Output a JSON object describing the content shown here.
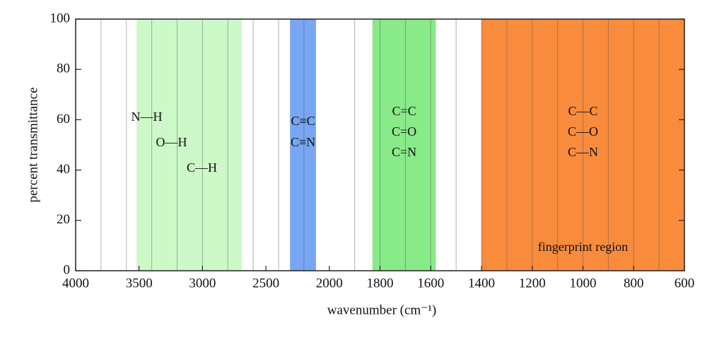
{
  "chart_data": {
    "type": "regions",
    "xlabel": "wavenumber (cm⁻¹)",
    "ylabel": "percent transmittance",
    "xlim": [
      4000,
      600
    ],
    "ylim": [
      0,
      100
    ],
    "xticks": [
      4000,
      3500,
      3000,
      2500,
      2000,
      1800,
      1600,
      1400,
      1200,
      1000,
      800,
      600
    ],
    "yticks": [
      0,
      20,
      40,
      60,
      80,
      100
    ],
    "xgrid": [
      3800,
      3600,
      3400,
      3200,
      3000,
      2800,
      2600,
      2400,
      2200,
      1900,
      1800,
      1700,
      1600,
      1500,
      1400,
      1300,
      1200,
      1100,
      1000,
      900,
      800,
      700
    ],
    "regions": [
      {
        "from": 3520,
        "to": 2690,
        "color": "#cdf9c9",
        "labels": [
          "N—H",
          "O—H",
          "C—H"
        ]
      },
      {
        "from": 2310,
        "to": 2105,
        "color": "#78a6f2",
        "labels": [
          "C≡C",
          "C≡N"
        ]
      },
      {
        "from": 1830,
        "to": 1580,
        "color": "#88ea88",
        "labels": [
          "C=C",
          "C=O",
          "C=N"
        ]
      },
      {
        "from": 1400,
        "to": 600,
        "color": "#f98b3c",
        "labels": [
          "C—C",
          "C—O",
          "C—N"
        ]
      }
    ],
    "annotation": "fingerprint region"
  }
}
